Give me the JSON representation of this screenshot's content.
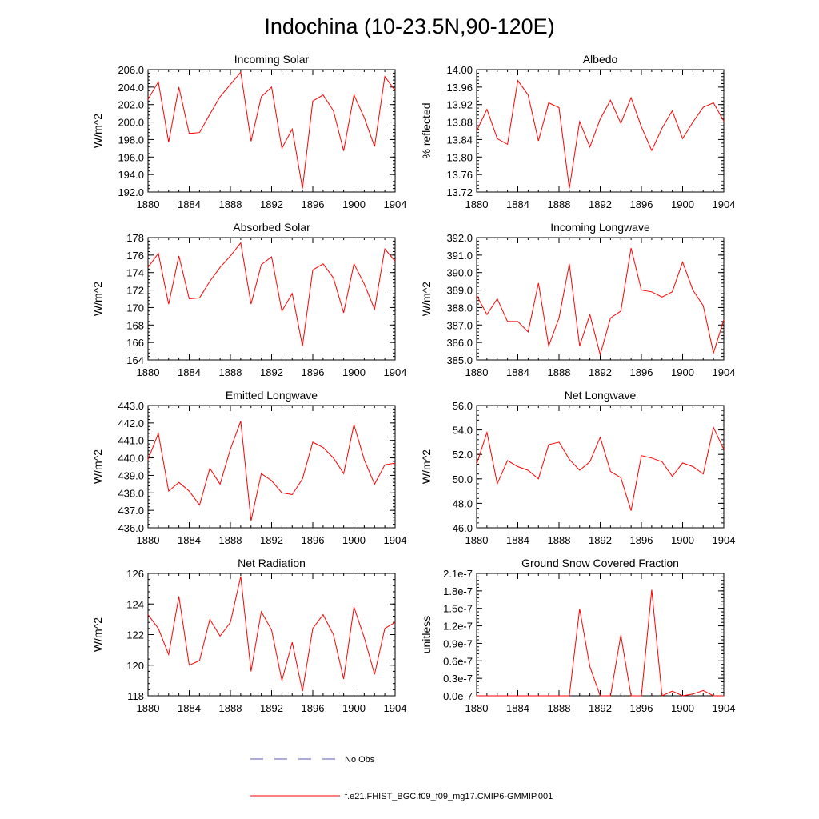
{
  "figure": {
    "title": "Indochina (10-23.5N,90-120E)",
    "series_color": "#ff0000",
    "obs_color": "#5a5ab4"
  },
  "legend": {
    "obs_label": "No Obs",
    "model_label": "f.e21.FHIST_BGC.f09_f09_mg17.CMIP6-GMMIP.001"
  },
  "chart_data": [
    {
      "type": "line",
      "title": "Incoming Solar",
      "ylabel": "W/m^2",
      "xlim": [
        1880,
        1904
      ],
      "ylim": [
        192,
        206
      ],
      "xticks": [
        1880,
        1884,
        1888,
        1892,
        1896,
        1900,
        1904
      ],
      "xtick_labels": [
        "1880",
        "1884",
        "1888",
        "1892",
        "1896",
        "1900",
        "1904"
      ],
      "yticks": [
        192,
        194,
        196,
        198,
        200,
        202,
        204,
        206
      ],
      "ytick_labels": [
        "192.0",
        "194.0",
        "196.0",
        "198.0",
        "200.0",
        "202.0",
        "204.0",
        "206.0"
      ],
      "y_minor_step": 0.4,
      "x": [
        1880,
        1881,
        1882,
        1883,
        1884,
        1885,
        1886,
        1887,
        1888,
        1889,
        1890,
        1891,
        1892,
        1893,
        1894,
        1895,
        1896,
        1897,
        1898,
        1899,
        1900,
        1901,
        1902,
        1903,
        1904
      ],
      "y": [
        202.6,
        204.6,
        197.7,
        204.0,
        198.7,
        198.8,
        200.9,
        202.9,
        204.3,
        205.7,
        197.8,
        202.9,
        204.0,
        197.0,
        199.2,
        192.4,
        202.4,
        203.1,
        201.3,
        196.7,
        203.1,
        200.5,
        197.2,
        205.2,
        203.6
      ]
    },
    {
      "type": "line",
      "title": "Albedo",
      "ylabel": "% reflected",
      "xlim": [
        1880,
        1904
      ],
      "ylim": [
        13.72,
        14.0
      ],
      "xticks": [
        1880,
        1884,
        1888,
        1892,
        1896,
        1900,
        1904
      ],
      "xtick_labels": [
        "1880",
        "1884",
        "1888",
        "1892",
        "1896",
        "1900",
        "1904"
      ],
      "yticks": [
        13.72,
        13.76,
        13.8,
        13.84,
        13.88,
        13.92,
        13.96,
        14.0
      ],
      "ytick_labels": [
        "13.72",
        "13.76",
        "13.80",
        "13.84",
        "13.88",
        "13.92",
        "13.96",
        "14.00"
      ],
      "y_minor_step": 0.008,
      "x": [
        1880,
        1881,
        1882,
        1883,
        1884,
        1885,
        1886,
        1887,
        1888,
        1889,
        1890,
        1891,
        1892,
        1893,
        1894,
        1895,
        1896,
        1897,
        1898,
        1899,
        1900,
        1901,
        1902,
        1903,
        1904
      ],
      "y": [
        13.86,
        13.909,
        13.842,
        13.829,
        13.975,
        13.942,
        13.837,
        13.924,
        13.913,
        13.728,
        13.881,
        13.823,
        13.887,
        13.93,
        13.877,
        13.936,
        13.869,
        13.815,
        13.866,
        13.906,
        13.842,
        13.88,
        13.914,
        13.924,
        13.882
      ]
    },
    {
      "type": "line",
      "title": "Absorbed Solar",
      "ylabel": "W/m^2",
      "xlim": [
        1880,
        1904
      ],
      "ylim": [
        164,
        178
      ],
      "xticks": [
        1880,
        1884,
        1888,
        1892,
        1896,
        1900,
        1904
      ],
      "xtick_labels": [
        "1880",
        "1884",
        "1888",
        "1892",
        "1896",
        "1900",
        "1904"
      ],
      "yticks": [
        164,
        166,
        168,
        170,
        172,
        174,
        176,
        178
      ],
      "ytick_labels": [
        "164",
        "166",
        "168",
        "170",
        "172",
        "174",
        "176",
        "178"
      ],
      "y_minor_step": 0.4,
      "x": [
        1880,
        1881,
        1882,
        1883,
        1884,
        1885,
        1886,
        1887,
        1888,
        1889,
        1890,
        1891,
        1892,
        1893,
        1894,
        1895,
        1896,
        1897,
        1898,
        1899,
        1900,
        1901,
        1902,
        1903,
        1904
      ],
      "y": [
        174.6,
        176.2,
        170.4,
        175.9,
        171.0,
        171.1,
        173.0,
        174.6,
        175.9,
        177.4,
        170.4,
        174.9,
        175.8,
        169.6,
        171.6,
        165.6,
        174.3,
        175.0,
        173.4,
        169.4,
        175.0,
        172.7,
        169.8,
        176.7,
        175.3
      ]
    },
    {
      "type": "line",
      "title": "Incoming Longwave",
      "ylabel": "W/m^2",
      "xlim": [
        1880,
        1904
      ],
      "ylim": [
        385,
        392
      ],
      "xticks": [
        1880,
        1884,
        1888,
        1892,
        1896,
        1900,
        1904
      ],
      "xtick_labels": [
        "1880",
        "1884",
        "1888",
        "1892",
        "1896",
        "1900",
        "1904"
      ],
      "yticks": [
        385,
        386,
        387,
        388,
        389,
        390,
        391,
        392
      ],
      "ytick_labels": [
        "385.0",
        "386.0",
        "387.0",
        "388.0",
        "389.0",
        "390.0",
        "391.0",
        "392.0"
      ],
      "y_minor_step": 0.2,
      "x": [
        1880,
        1881,
        1882,
        1883,
        1884,
        1885,
        1886,
        1887,
        1888,
        1889,
        1890,
        1891,
        1892,
        1893,
        1894,
        1895,
        1896,
        1897,
        1898,
        1899,
        1900,
        1901,
        1902,
        1903,
        1904
      ],
      "y": [
        388.7,
        387.6,
        388.5,
        387.2,
        387.2,
        386.6,
        389.4,
        385.8,
        387.4,
        390.5,
        385.8,
        387.6,
        385.3,
        387.4,
        387.8,
        391.4,
        389.0,
        388.9,
        388.6,
        388.9,
        390.6,
        389.0,
        388.1,
        385.4,
        387.3
      ]
    },
    {
      "type": "line",
      "title": "Emitted Longwave",
      "ylabel": "W/m^2",
      "xlim": [
        1880,
        1904
      ],
      "ylim": [
        436,
        443
      ],
      "xticks": [
        1880,
        1884,
        1888,
        1892,
        1896,
        1900,
        1904
      ],
      "xtick_labels": [
        "1880",
        "1884",
        "1888",
        "1892",
        "1896",
        "1900",
        "1904"
      ],
      "yticks": [
        436,
        437,
        438,
        439,
        440,
        441,
        442,
        443
      ],
      "ytick_labels": [
        "436.0",
        "437.0",
        "438.0",
        "439.0",
        "440.0",
        "441.0",
        "442.0",
        "443.0"
      ],
      "y_minor_step": 0.2,
      "x": [
        1880,
        1881,
        1882,
        1883,
        1884,
        1885,
        1886,
        1887,
        1888,
        1889,
        1890,
        1891,
        1892,
        1893,
        1894,
        1895,
        1896,
        1897,
        1898,
        1899,
        1900,
        1901,
        1902,
        1903,
        1904
      ],
      "y": [
        439.9,
        441.4,
        438.1,
        438.6,
        438.1,
        437.3,
        439.4,
        438.5,
        440.5,
        442.1,
        436.4,
        439.1,
        438.7,
        438.0,
        437.9,
        438.8,
        440.9,
        440.6,
        440.0,
        439.1,
        441.9,
        439.9,
        438.5,
        439.6,
        439.7
      ]
    },
    {
      "type": "line",
      "title": "Net Longwave",
      "ylabel": "W/m^2",
      "xlim": [
        1880,
        1904
      ],
      "ylim": [
        46,
        56
      ],
      "xticks": [
        1880,
        1884,
        1888,
        1892,
        1896,
        1900,
        1904
      ],
      "xtick_labels": [
        "1880",
        "1884",
        "1888",
        "1892",
        "1896",
        "1900",
        "1904"
      ],
      "yticks": [
        46,
        48,
        50,
        52,
        54,
        56
      ],
      "ytick_labels": [
        "46.0",
        "48.0",
        "50.0",
        "52.0",
        "54.0",
        "56.0"
      ],
      "y_minor_step": 0.4,
      "x": [
        1880,
        1881,
        1882,
        1883,
        1884,
        1885,
        1886,
        1887,
        1888,
        1889,
        1890,
        1891,
        1892,
        1893,
        1894,
        1895,
        1896,
        1897,
        1898,
        1899,
        1900,
        1901,
        1902,
        1903,
        1904
      ],
      "y": [
        51.2,
        53.8,
        49.6,
        51.5,
        51.0,
        50.7,
        50.0,
        52.8,
        53.0,
        51.6,
        50.7,
        51.4,
        53.4,
        50.6,
        50.1,
        47.4,
        51.9,
        51.7,
        51.4,
        50.2,
        51.3,
        51.0,
        50.4,
        54.2,
        52.4
      ]
    },
    {
      "type": "line",
      "title": "Net Radiation",
      "ylabel": "W/m^2",
      "xlim": [
        1880,
        1904
      ],
      "ylim": [
        118,
        126
      ],
      "xticks": [
        1880,
        1884,
        1888,
        1892,
        1896,
        1900,
        1904
      ],
      "xtick_labels": [
        "1880",
        "1884",
        "1888",
        "1892",
        "1896",
        "1900",
        "1904"
      ],
      "yticks": [
        118,
        120,
        122,
        124,
        126
      ],
      "ytick_labels": [
        "118",
        "120",
        "122",
        "124",
        "126"
      ],
      "y_minor_step": 0.4,
      "x": [
        1880,
        1881,
        1882,
        1883,
        1884,
        1885,
        1886,
        1887,
        1888,
        1889,
        1890,
        1891,
        1892,
        1893,
        1894,
        1895,
        1896,
        1897,
        1898,
        1899,
        1900,
        1901,
        1902,
        1903,
        1904
      ],
      "y": [
        123.3,
        122.4,
        120.7,
        124.5,
        120.0,
        120.3,
        123.0,
        121.9,
        122.8,
        125.8,
        119.6,
        123.5,
        122.3,
        119.0,
        121.5,
        118.3,
        122.4,
        123.3,
        122.0,
        119.1,
        123.8,
        121.8,
        119.4,
        122.4,
        122.8
      ]
    },
    {
      "type": "line",
      "title": "Ground Snow Covered Fraction",
      "ylabel": "unitless",
      "xlim": [
        1880,
        1904
      ],
      "ylim": [
        0,
        2.1e-07
      ],
      "xticks": [
        1880,
        1884,
        1888,
        1892,
        1896,
        1900,
        1904
      ],
      "xtick_labels": [
        "1880",
        "1884",
        "1888",
        "1892",
        "1896",
        "1900",
        "1904"
      ],
      "yticks": [
        0,
        3e-08,
        6e-08,
        9e-08,
        1.2e-07,
        1.5e-07,
        1.8e-07,
        2.1e-07
      ],
      "ytick_labels": [
        "0.0e-7",
        "0.3e-7",
        "0.6e-7",
        "0.9e-7",
        "1.2e-7",
        "1.5e-7",
        "1.8e-7",
        "2.1e-7"
      ],
      "y_minor_step": 6e-09,
      "x": [
        1880,
        1881,
        1882,
        1883,
        1884,
        1885,
        1886,
        1887,
        1888,
        1889,
        1890,
        1891,
        1892,
        1893,
        1894,
        1895,
        1896,
        1897,
        1898,
        1899,
        1900,
        1901,
        1902,
        1903,
        1904
      ],
      "y": [
        0,
        0,
        0,
        0,
        0,
        0,
        0,
        0,
        0,
        0,
        1.49e-07,
        5e-08,
        0,
        0,
        1.04e-07,
        0,
        0,
        1.82e-07,
        0,
        8e-09,
        0,
        3e-09,
        9e-09,
        0,
        0
      ]
    }
  ]
}
